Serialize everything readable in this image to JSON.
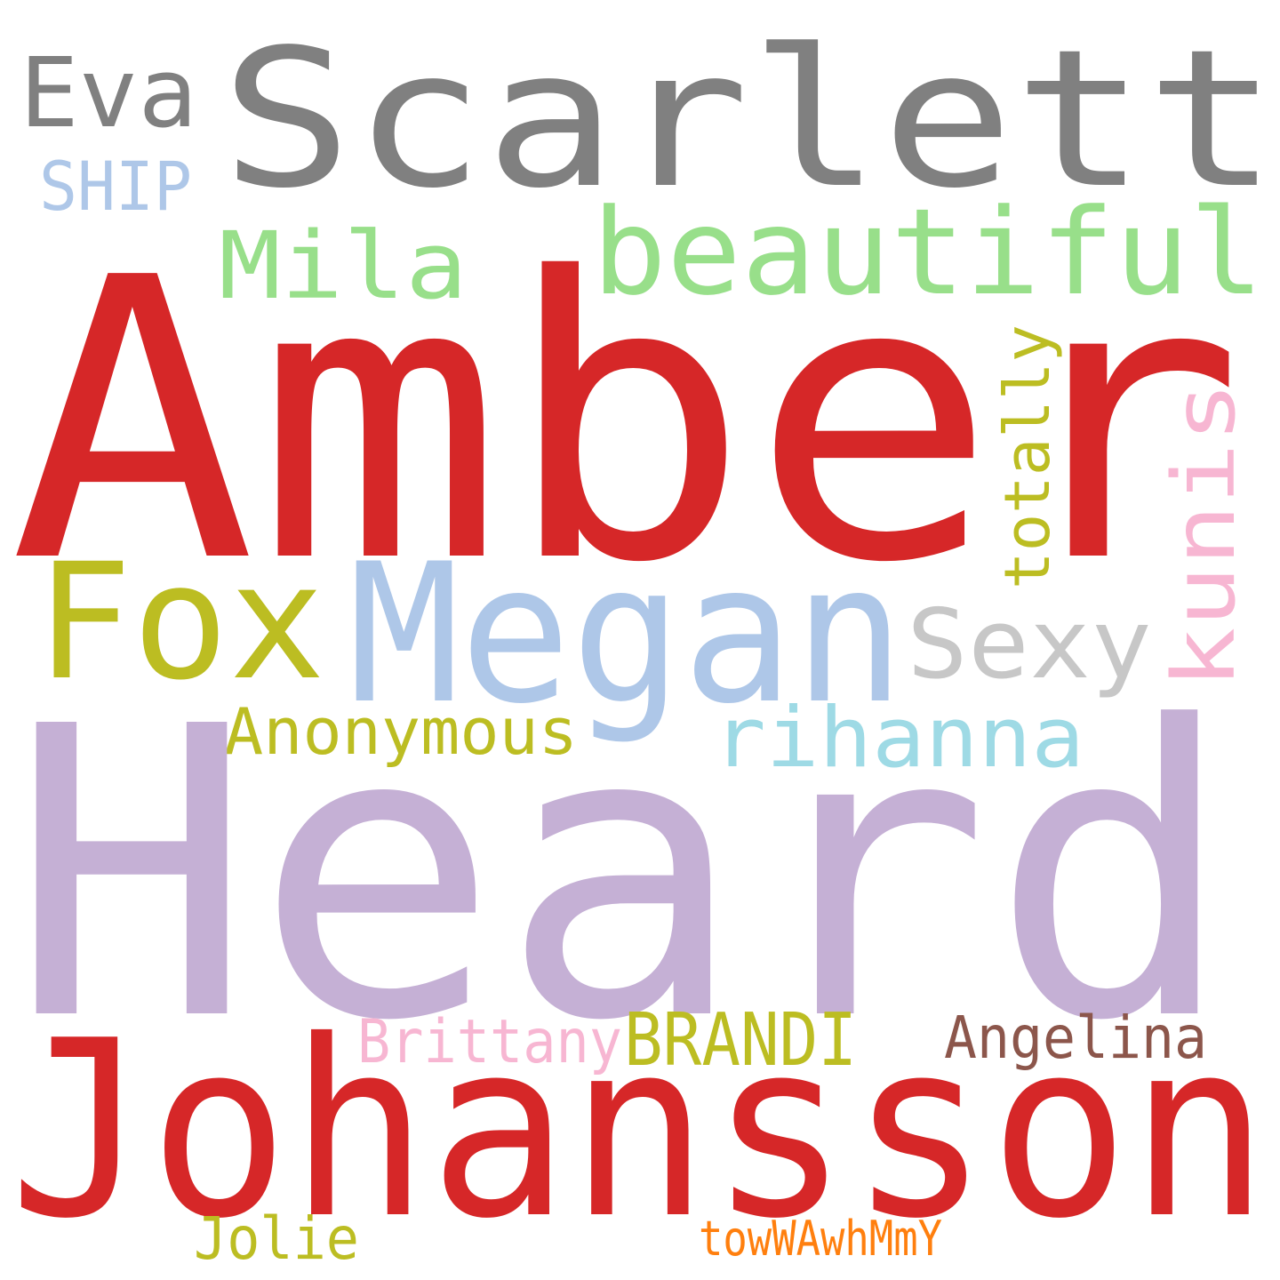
{
  "words": [
    {
      "text": "Scarlett",
      "color": "#808080"
    },
    {
      "text": "Eva",
      "color": "#808080"
    },
    {
      "text": "SHIP",
      "color": "#aec7e8"
    },
    {
      "text": "beautiful",
      "color": "#98df8a"
    },
    {
      "text": "Mila",
      "color": "#98df8a"
    },
    {
      "text": "Amber",
      "color": "#d62728"
    },
    {
      "text": "totally",
      "color": "#bcbd22"
    },
    {
      "text": "kunis",
      "color": "#f7b6d2"
    },
    {
      "text": "Fox",
      "color": "#bcbd22"
    },
    {
      "text": "Megan",
      "color": "#aec7e8"
    },
    {
      "text": "Sexy",
      "color": "#c7c7c7"
    },
    {
      "text": "Anonymous",
      "color": "#bcbd22"
    },
    {
      "text": "rihanna",
      "color": "#9edae5"
    },
    {
      "text": "Heard",
      "color": "#c5b0d5"
    },
    {
      "text": "Brittany",
      "color": "#f7b6d2"
    },
    {
      "text": "BRANDI",
      "color": "#bcbd22"
    },
    {
      "text": "Angelina",
      "color": "#8c564b"
    },
    {
      "text": "Johansson",
      "color": "#d62728"
    },
    {
      "text": "Jolie",
      "color": "#bcbd22"
    },
    {
      "text": "towWAwhMmY",
      "color": "#ff7f0e"
    }
  ]
}
